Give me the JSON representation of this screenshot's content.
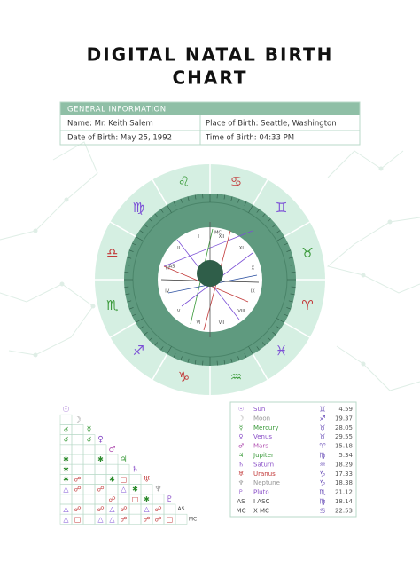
{
  "header": {
    "title_lines": [
      "DIGITAL NATAL BIRTH",
      "CHART"
    ]
  },
  "general_info": {
    "heading": "GENERAL INFORMATION",
    "rows": [
      [
        "Name: Mr. Keith Salem",
        "Place of Birth: Seattle, Washington"
      ],
      [
        "Date of Birth: May 25, 1992",
        "Time of Birth: 04:33 PM"
      ]
    ]
  },
  "wheel": {
    "signs": [
      "♋",
      "♌",
      "♍",
      "♎",
      "♏",
      "♐",
      "♑",
      "♒",
      "♓",
      "♈",
      "♉",
      "♊"
    ],
    "houses": [
      "XII",
      "XI",
      "X",
      "IX",
      "VIII",
      "VII",
      "VI",
      "V",
      "IV",
      "III",
      "II",
      "I"
    ],
    "angles": [
      "AS",
      "MC"
    ]
  },
  "planets": [
    {
      "glyph": "☉",
      "name": "Sun",
      "sign": "♊",
      "degree": 4.59
    },
    {
      "glyph": "☽",
      "name": "Moon",
      "sign": "♐",
      "degree": 19.37
    },
    {
      "glyph": "☿",
      "name": "Mercury",
      "sign": "♉",
      "degree": 28.05
    },
    {
      "glyph": "♀",
      "name": "Venus",
      "sign": "♉",
      "degree": 29.55
    },
    {
      "glyph": "♂",
      "name": "Mars",
      "sign": "♈",
      "degree": 15.18
    },
    {
      "glyph": "♃",
      "name": "Jupiter",
      "sign": "♍",
      "degree": 5.34
    },
    {
      "glyph": "♄",
      "name": "Saturn",
      "sign": "♒",
      "degree": 18.29
    },
    {
      "glyph": "♅",
      "name": "Uranus",
      "sign": "♑",
      "degree": 17.33
    },
    {
      "glyph": "♆",
      "name": "Neptune",
      "sign": "♑",
      "degree": 18.38
    },
    {
      "glyph": "♇",
      "name": "Pluto",
      "sign": "♏",
      "degree": 21.12
    },
    {
      "glyph": "AS",
      "name": "I ASC",
      "sign": "♍",
      "degree": 18.14
    },
    {
      "glyph": "MC",
      "name": "X MC",
      "sign": "♋",
      "degree": 22.53
    }
  ],
  "aspect_grid": {
    "labels": [
      "☉",
      "☽",
      "☿",
      "♀",
      "♂",
      "♃",
      "♄",
      "♅",
      "♆",
      "♇",
      "AS",
      "MC"
    ],
    "rows": [
      [],
      [
        null
      ],
      [
        "☌",
        null
      ],
      [
        "☌",
        null,
        "☌"
      ],
      [
        null,
        null,
        null,
        null
      ],
      [
        "✱",
        null,
        null,
        "✱",
        null
      ],
      [
        "✱",
        null,
        null,
        null,
        null,
        null
      ],
      [
        "✱",
        "☍",
        null,
        null,
        "✱",
        "□",
        null
      ],
      [
        "△",
        "☍",
        null,
        "☍",
        null,
        "△",
        "✱",
        null
      ],
      [
        null,
        null,
        null,
        null,
        "☍",
        null,
        "□",
        "✱",
        null
      ],
      [
        "△",
        "☍",
        null,
        "☍",
        "△",
        "☍",
        null,
        "△",
        "☍",
        null
      ],
      [
        "△",
        "□",
        null,
        "△",
        "△",
        "☍",
        null,
        "☍",
        "☍",
        "□",
        null
      ]
    ]
  }
}
